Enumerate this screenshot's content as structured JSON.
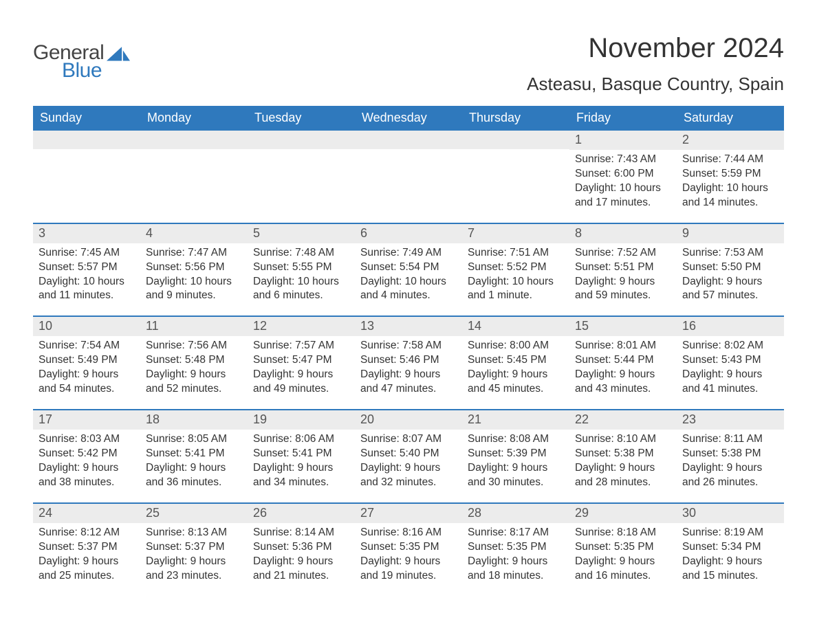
{
  "logo": {
    "word1": "General",
    "word2": "Blue",
    "sail_color": "#2f79bd",
    "text_color1": "#444444",
    "text_color2": "#2f79bd"
  },
  "header": {
    "month_title": "November 2024",
    "location": "Asteasu, Basque Country, Spain"
  },
  "colors": {
    "header_bg": "#2f79bd",
    "header_text": "#ffffff",
    "daynum_bg": "#ececec",
    "row_border": "#2f79bd",
    "body_text": "#333333"
  },
  "weekdays": [
    "Sunday",
    "Monday",
    "Tuesday",
    "Wednesday",
    "Thursday",
    "Friday",
    "Saturday"
  ],
  "weeks": [
    [
      null,
      null,
      null,
      null,
      null,
      {
        "n": "1",
        "sr": "Sunrise: 7:43 AM",
        "ss": "Sunset: 6:00 PM",
        "d1": "Daylight: 10 hours",
        "d2": "and 17 minutes."
      },
      {
        "n": "2",
        "sr": "Sunrise: 7:44 AM",
        "ss": "Sunset: 5:59 PM",
        "d1": "Daylight: 10 hours",
        "d2": "and 14 minutes."
      }
    ],
    [
      {
        "n": "3",
        "sr": "Sunrise: 7:45 AM",
        "ss": "Sunset: 5:57 PM",
        "d1": "Daylight: 10 hours",
        "d2": "and 11 minutes."
      },
      {
        "n": "4",
        "sr": "Sunrise: 7:47 AM",
        "ss": "Sunset: 5:56 PM",
        "d1": "Daylight: 10 hours",
        "d2": "and 9 minutes."
      },
      {
        "n": "5",
        "sr": "Sunrise: 7:48 AM",
        "ss": "Sunset: 5:55 PM",
        "d1": "Daylight: 10 hours",
        "d2": "and 6 minutes."
      },
      {
        "n": "6",
        "sr": "Sunrise: 7:49 AM",
        "ss": "Sunset: 5:54 PM",
        "d1": "Daylight: 10 hours",
        "d2": "and 4 minutes."
      },
      {
        "n": "7",
        "sr": "Sunrise: 7:51 AM",
        "ss": "Sunset: 5:52 PM",
        "d1": "Daylight: 10 hours",
        "d2": "and 1 minute."
      },
      {
        "n": "8",
        "sr": "Sunrise: 7:52 AM",
        "ss": "Sunset: 5:51 PM",
        "d1": "Daylight: 9 hours",
        "d2": "and 59 minutes."
      },
      {
        "n": "9",
        "sr": "Sunrise: 7:53 AM",
        "ss": "Sunset: 5:50 PM",
        "d1": "Daylight: 9 hours",
        "d2": "and 57 minutes."
      }
    ],
    [
      {
        "n": "10",
        "sr": "Sunrise: 7:54 AM",
        "ss": "Sunset: 5:49 PM",
        "d1": "Daylight: 9 hours",
        "d2": "and 54 minutes."
      },
      {
        "n": "11",
        "sr": "Sunrise: 7:56 AM",
        "ss": "Sunset: 5:48 PM",
        "d1": "Daylight: 9 hours",
        "d2": "and 52 minutes."
      },
      {
        "n": "12",
        "sr": "Sunrise: 7:57 AM",
        "ss": "Sunset: 5:47 PM",
        "d1": "Daylight: 9 hours",
        "d2": "and 49 minutes."
      },
      {
        "n": "13",
        "sr": "Sunrise: 7:58 AM",
        "ss": "Sunset: 5:46 PM",
        "d1": "Daylight: 9 hours",
        "d2": "and 47 minutes."
      },
      {
        "n": "14",
        "sr": "Sunrise: 8:00 AM",
        "ss": "Sunset: 5:45 PM",
        "d1": "Daylight: 9 hours",
        "d2": "and 45 minutes."
      },
      {
        "n": "15",
        "sr": "Sunrise: 8:01 AM",
        "ss": "Sunset: 5:44 PM",
        "d1": "Daylight: 9 hours",
        "d2": "and 43 minutes."
      },
      {
        "n": "16",
        "sr": "Sunrise: 8:02 AM",
        "ss": "Sunset: 5:43 PM",
        "d1": "Daylight: 9 hours",
        "d2": "and 41 minutes."
      }
    ],
    [
      {
        "n": "17",
        "sr": "Sunrise: 8:03 AM",
        "ss": "Sunset: 5:42 PM",
        "d1": "Daylight: 9 hours",
        "d2": "and 38 minutes."
      },
      {
        "n": "18",
        "sr": "Sunrise: 8:05 AM",
        "ss": "Sunset: 5:41 PM",
        "d1": "Daylight: 9 hours",
        "d2": "and 36 minutes."
      },
      {
        "n": "19",
        "sr": "Sunrise: 8:06 AM",
        "ss": "Sunset: 5:41 PM",
        "d1": "Daylight: 9 hours",
        "d2": "and 34 minutes."
      },
      {
        "n": "20",
        "sr": "Sunrise: 8:07 AM",
        "ss": "Sunset: 5:40 PM",
        "d1": "Daylight: 9 hours",
        "d2": "and 32 minutes."
      },
      {
        "n": "21",
        "sr": "Sunrise: 8:08 AM",
        "ss": "Sunset: 5:39 PM",
        "d1": "Daylight: 9 hours",
        "d2": "and 30 minutes."
      },
      {
        "n": "22",
        "sr": "Sunrise: 8:10 AM",
        "ss": "Sunset: 5:38 PM",
        "d1": "Daylight: 9 hours",
        "d2": "and 28 minutes."
      },
      {
        "n": "23",
        "sr": "Sunrise: 8:11 AM",
        "ss": "Sunset: 5:38 PM",
        "d1": "Daylight: 9 hours",
        "d2": "and 26 minutes."
      }
    ],
    [
      {
        "n": "24",
        "sr": "Sunrise: 8:12 AM",
        "ss": "Sunset: 5:37 PM",
        "d1": "Daylight: 9 hours",
        "d2": "and 25 minutes."
      },
      {
        "n": "25",
        "sr": "Sunrise: 8:13 AM",
        "ss": "Sunset: 5:37 PM",
        "d1": "Daylight: 9 hours",
        "d2": "and 23 minutes."
      },
      {
        "n": "26",
        "sr": "Sunrise: 8:14 AM",
        "ss": "Sunset: 5:36 PM",
        "d1": "Daylight: 9 hours",
        "d2": "and 21 minutes."
      },
      {
        "n": "27",
        "sr": "Sunrise: 8:16 AM",
        "ss": "Sunset: 5:35 PM",
        "d1": "Daylight: 9 hours",
        "d2": "and 19 minutes."
      },
      {
        "n": "28",
        "sr": "Sunrise: 8:17 AM",
        "ss": "Sunset: 5:35 PM",
        "d1": "Daylight: 9 hours",
        "d2": "and 18 minutes."
      },
      {
        "n": "29",
        "sr": "Sunrise: 8:18 AM",
        "ss": "Sunset: 5:35 PM",
        "d1": "Daylight: 9 hours",
        "d2": "and 16 minutes."
      },
      {
        "n": "30",
        "sr": "Sunrise: 8:19 AM",
        "ss": "Sunset: 5:34 PM",
        "d1": "Daylight: 9 hours",
        "d2": "and 15 minutes."
      }
    ]
  ]
}
